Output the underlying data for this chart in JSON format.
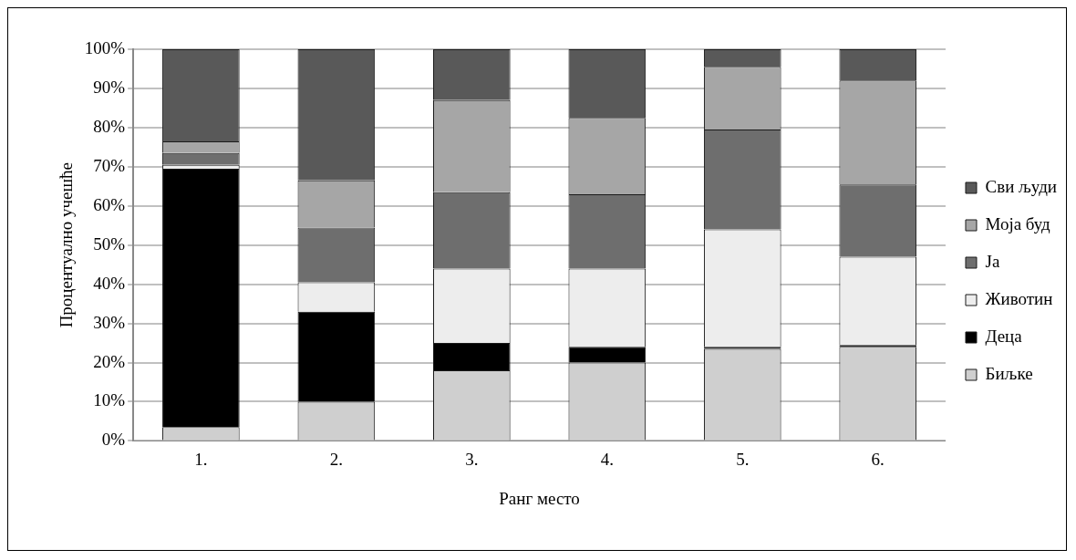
{
  "chart_data": {
    "type": "bar",
    "stacked": true,
    "xlabel": "Ранг место",
    "ylabel": "Процентуално учешће",
    "categories": [
      "1.",
      "2.",
      "3.",
      "4.",
      "5.",
      "6."
    ],
    "series": [
      {
        "name": "Биљке",
        "color": "#cfcfcf",
        "values": [
          3.5,
          10,
          18,
          20,
          23.5,
          24
        ]
      },
      {
        "name": "Деца",
        "color": "#000000",
        "values": [
          66,
          23,
          7,
          4,
          0.5,
          0.5
        ]
      },
      {
        "name": "Животин",
        "color": "#ededed",
        "values": [
          1,
          7.5,
          19,
          20,
          30,
          22.5
        ]
      },
      {
        "name": "Ja",
        "color": "#6e6e6e",
        "values": [
          3,
          14,
          19.5,
          19,
          25.5,
          18.5
        ]
      },
      {
        "name": "Моја буд",
        "color": "#a6a6a6",
        "values": [
          3,
          12,
          23.5,
          19.5,
          16,
          26.5
        ]
      },
      {
        "name": "Сви људи",
        "color": "#595959",
        "values": [
          23.5,
          33.5,
          13,
          17.5,
          4.5,
          8
        ]
      }
    ],
    "ylim": [
      0,
      100
    ],
    "yticks": [
      {
        "value": 0,
        "label": "0%"
      },
      {
        "value": 10,
        "label": "10%"
      },
      {
        "value": 20,
        "label": "20%"
      },
      {
        "value": 30,
        "label": "30%"
      },
      {
        "value": 40,
        "label": "40%"
      },
      {
        "value": 50,
        "label": "50%"
      },
      {
        "value": 60,
        "label": "60%"
      },
      {
        "value": 70,
        "label": "70%"
      },
      {
        "value": 80,
        "label": "80%"
      },
      {
        "value": 90,
        "label": "90%"
      },
      {
        "value": 100,
        "label": "100%"
      }
    ],
    "grid": "y",
    "legend": "right"
  }
}
